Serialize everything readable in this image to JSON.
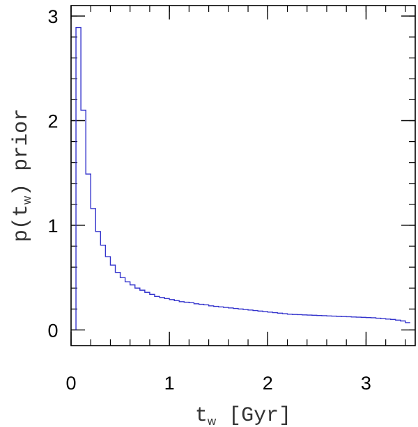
{
  "chart_data": {
    "type": "line",
    "step": true,
    "xlabel": "t_w [Gyr]",
    "xlabel_parts": {
      "base": "t",
      "sub": "w",
      "rest": " [Gyr]"
    },
    "ylabel": "p(t_w) prior",
    "ylabel_parts": {
      "pre": "p(t",
      "sub": "w",
      "post": ") prior"
    },
    "xlim": [
      0,
      3.5
    ],
    "ylim": [
      -0.15,
      3.1
    ],
    "x_ticks": [
      0,
      1,
      2,
      3
    ],
    "x_tick_labels": [
      "0",
      "1",
      "2",
      "3"
    ],
    "y_ticks": [
      0,
      1,
      2,
      3
    ],
    "y_tick_labels": [
      "0",
      "1",
      "2",
      "3"
    ],
    "x_minor_step": 0.2,
    "y_minor_step": 0.2,
    "grid": false,
    "legend": "none",
    "series": [
      {
        "color": "#3333cc",
        "bin_edges": [
          0.05,
          0.1,
          0.15,
          0.2,
          0.25,
          0.3,
          0.35,
          0.4,
          0.45,
          0.5,
          0.55,
          0.6,
          0.65,
          0.7,
          0.75,
          0.8,
          0.85,
          0.9,
          0.95,
          1.0,
          1.05,
          1.1,
          1.15,
          1.2,
          1.25,
          1.3,
          1.35,
          1.4,
          1.45,
          1.5,
          1.55,
          1.6,
          1.65,
          1.7,
          1.75,
          1.8,
          1.85,
          1.9,
          1.95,
          2.0,
          2.05,
          2.1,
          2.15,
          2.2,
          2.25,
          2.3,
          2.35,
          2.4,
          2.45,
          2.5,
          2.55,
          2.6,
          2.65,
          2.7,
          2.75,
          2.8,
          2.85,
          2.9,
          2.95,
          3.0,
          3.05,
          3.1,
          3.15,
          3.2,
          3.25,
          3.3,
          3.35,
          3.4,
          3.45
        ],
        "values": [
          2.89,
          2.1,
          1.49,
          1.16,
          0.94,
          0.81,
          0.7,
          0.62,
          0.55,
          0.5,
          0.46,
          0.43,
          0.4,
          0.38,
          0.36,
          0.34,
          0.32,
          0.31,
          0.3,
          0.29,
          0.28,
          0.27,
          0.265,
          0.26,
          0.25,
          0.245,
          0.24,
          0.23,
          0.225,
          0.22,
          0.215,
          0.21,
          0.205,
          0.2,
          0.195,
          0.19,
          0.185,
          0.18,
          0.175,
          0.17,
          0.165,
          0.16,
          0.155,
          0.15,
          0.148,
          0.146,
          0.144,
          0.142,
          0.14,
          0.138,
          0.136,
          0.134,
          0.132,
          0.13,
          0.128,
          0.126,
          0.124,
          0.122,
          0.12,
          0.118,
          0.116,
          0.112,
          0.108,
          0.104,
          0.1,
          0.094,
          0.086,
          0.07
        ]
      }
    ]
  }
}
